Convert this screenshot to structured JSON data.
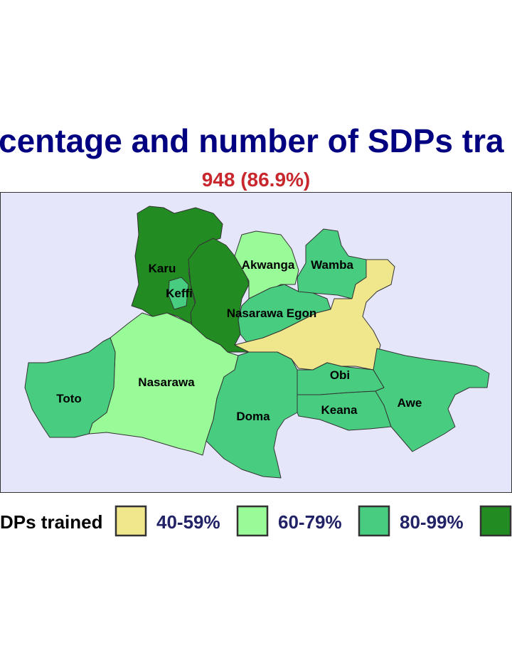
{
  "title": "centage and number of SDPs tra",
  "subtitle": "948 (86.9%)",
  "map": {
    "background": "#e6e6fa",
    "regions": [
      {
        "name": "Karu",
        "color": "#228b22"
      },
      {
        "color": "#228b22"
      },
      {
        "name": "Keffi",
        "color": "#48cd80"
      },
      {
        "name": "Akwanga",
        "color": "#98fb98"
      },
      {
        "name": "Wamba",
        "color": "#48cd80"
      },
      {
        "name": "Nasarawa Egon",
        "color": "#48cd80"
      },
      {
        "color": "#f0e68c"
      },
      {
        "name": "Nasarawa",
        "color": "#98fb98"
      },
      {
        "name": "Toto",
        "color": "#48cd80"
      },
      {
        "name": "Doma",
        "color": "#48cd80"
      },
      {
        "name": "Obi",
        "color": "#48cd80"
      },
      {
        "name": "Keana",
        "color": "#48cd80"
      },
      {
        "name": "Awe",
        "color": "#48cd80"
      }
    ]
  },
  "legend": {
    "title": "DPs trained",
    "items": [
      {
        "label": "40-59%",
        "color": "#f0e68c"
      },
      {
        "label": "60-79%",
        "color": "#98fb98"
      },
      {
        "label": "80-99%",
        "color": "#48cd80"
      },
      {
        "color": "#228b22"
      }
    ]
  }
}
